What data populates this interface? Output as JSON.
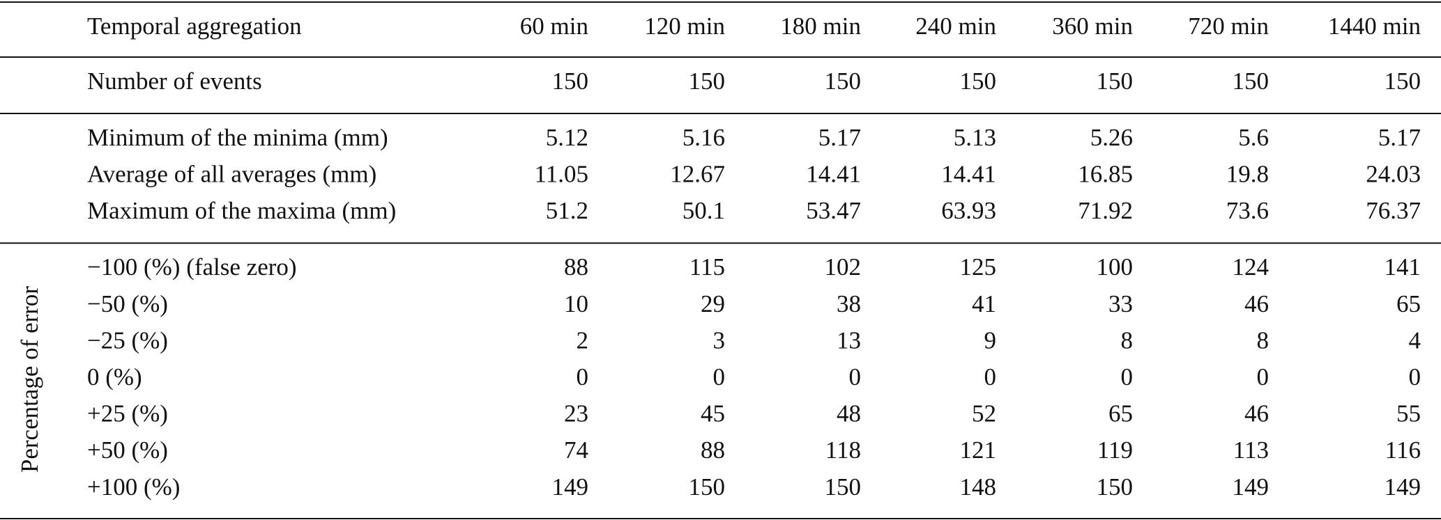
{
  "table": {
    "header": [
      "Temporal aggregation",
      "60 min",
      "120 min",
      "180 min",
      "240 min",
      "360 min",
      "720 min",
      "1440 min"
    ],
    "groups": [
      {
        "rows": [
          [
            "Number of events",
            150,
            150,
            150,
            150,
            150,
            150,
            150
          ]
        ]
      },
      {
        "rows": [
          [
            "Minimum of the minima (mm)",
            5.12,
            5.16,
            5.17,
            5.13,
            5.26,
            5.6,
            5.17
          ],
          [
            "Average of all averages (mm)",
            11.05,
            12.67,
            14.41,
            14.41,
            16.85,
            19.8,
            24.03
          ],
          [
            "Maximum of the maxima (mm)",
            51.2,
            50.1,
            53.47,
            63.93,
            71.92,
            73.6,
            76.37
          ]
        ]
      },
      {
        "side_label": "Percentage of error",
        "rows": [
          [
            "−100 (%) (false zero)",
            88,
            115,
            102,
            125,
            100,
            124,
            141
          ],
          [
            "−50 (%)",
            10,
            29,
            38,
            41,
            33,
            46,
            65
          ],
          [
            "−25 (%)",
            2,
            3,
            13,
            9,
            8,
            8,
            4
          ],
          [
            "0 (%)",
            0,
            0,
            0,
            0,
            0,
            0,
            0
          ],
          [
            "+25 (%)",
            23,
            45,
            48,
            52,
            65,
            46,
            55
          ],
          [
            "+50 (%)",
            74,
            88,
            118,
            121,
            119,
            113,
            116
          ],
          [
            "+100 (%)",
            149,
            150,
            150,
            148,
            150,
            149,
            149
          ]
        ]
      }
    ]
  }
}
